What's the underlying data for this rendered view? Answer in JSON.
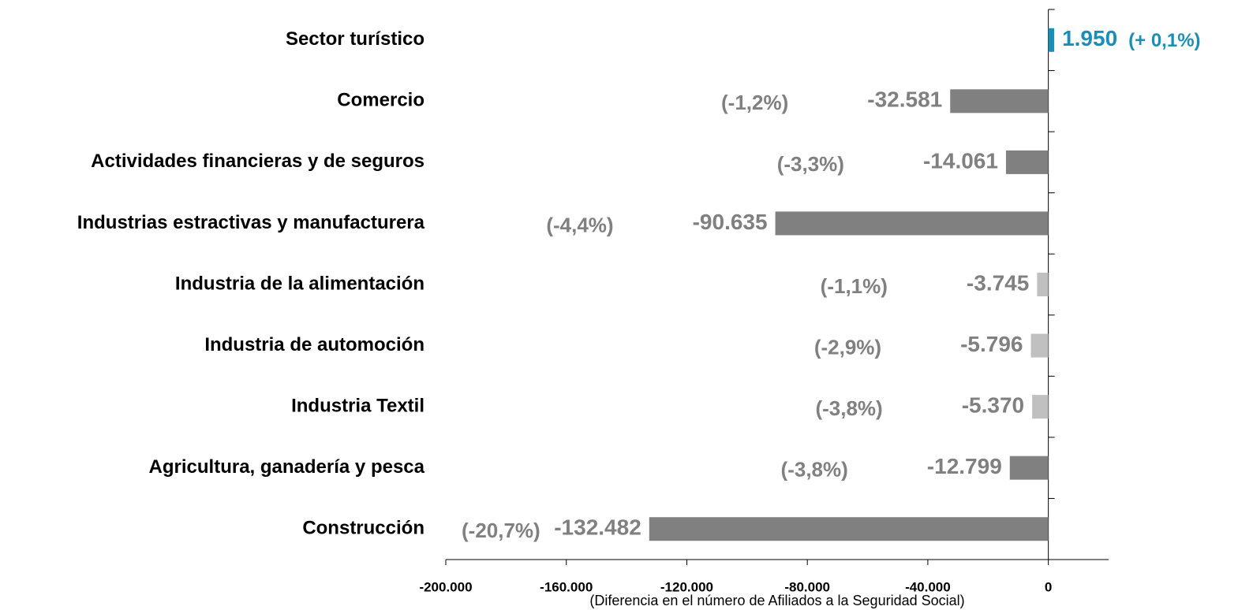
{
  "chart_data": {
    "type": "bar",
    "orientation": "horizontal",
    "x_label": "(Diferencia en el número de Afiliados a la Seguridad Social)",
    "categories": [
      "Sector turístico",
      "Comercio",
      "Actividades financieras y de seguros",
      "Industrias estractivas y manufacturera",
      "Industria de la alimentación",
      "Industria de automoción",
      "Industria Textil",
      "Agricultura, ganadería y pesca",
      "Construcción"
    ],
    "values": [
      1950,
      -32581,
      -14061,
      -90635,
      -3745,
      -5796,
      -5370,
      -12799,
      -132482
    ],
    "value_labels": [
      "1.950",
      "-32.581",
      "-14.061",
      "-90.635",
      "-3.745",
      "-5.796",
      "-5.370",
      "-12.799",
      "-132.482"
    ],
    "percent_labels": [
      "(+ 0,1%)",
      "(-1,2%)",
      "(-3,3%)",
      "(-4,4%)",
      "(-1,1%)",
      "(-2,9%)",
      "(-3,8%)",
      "(-3,8%)",
      "(-20,7%)"
    ],
    "colors": [
      "#1a8fb5",
      "#808080",
      "#808080",
      "#808080",
      "#c0c0c0",
      "#c0c0c0",
      "#c0c0c0",
      "#808080",
      "#808080"
    ],
    "xlim": [
      -200000,
      20000
    ],
    "xticks": [
      {
        "value": -200000,
        "label": "-200.000"
      },
      {
        "value": -160000,
        "label": "-160.000"
      },
      {
        "value": -120000,
        "label": "-120.000"
      },
      {
        "value": -80000,
        "label": "-80.000"
      },
      {
        "value": -40000,
        "label": "-40.000"
      },
      0
    ],
    "grid": false
  }
}
